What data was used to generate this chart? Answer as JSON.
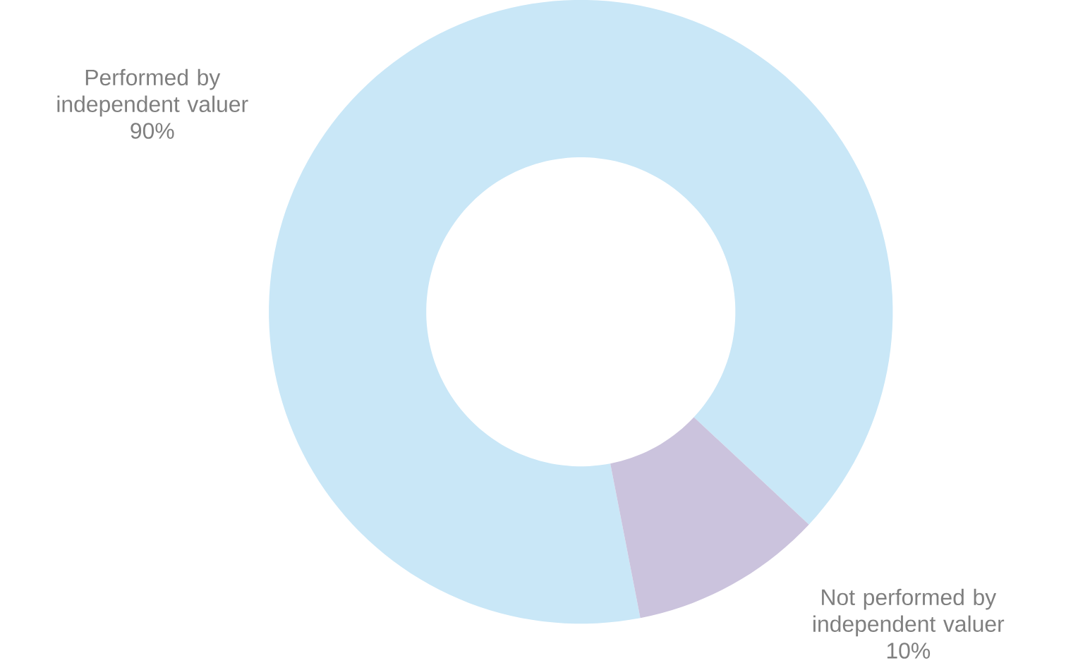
{
  "chart_data": {
    "type": "donut",
    "categories": [
      "Performed by independent valuer",
      "Not performed by independent valuer"
    ],
    "values": [
      90,
      10
    ],
    "value_labels": [
      "90%",
      "10%"
    ],
    "colors": [
      "#c9e7f7",
      "#cbc3dd"
    ]
  }
}
